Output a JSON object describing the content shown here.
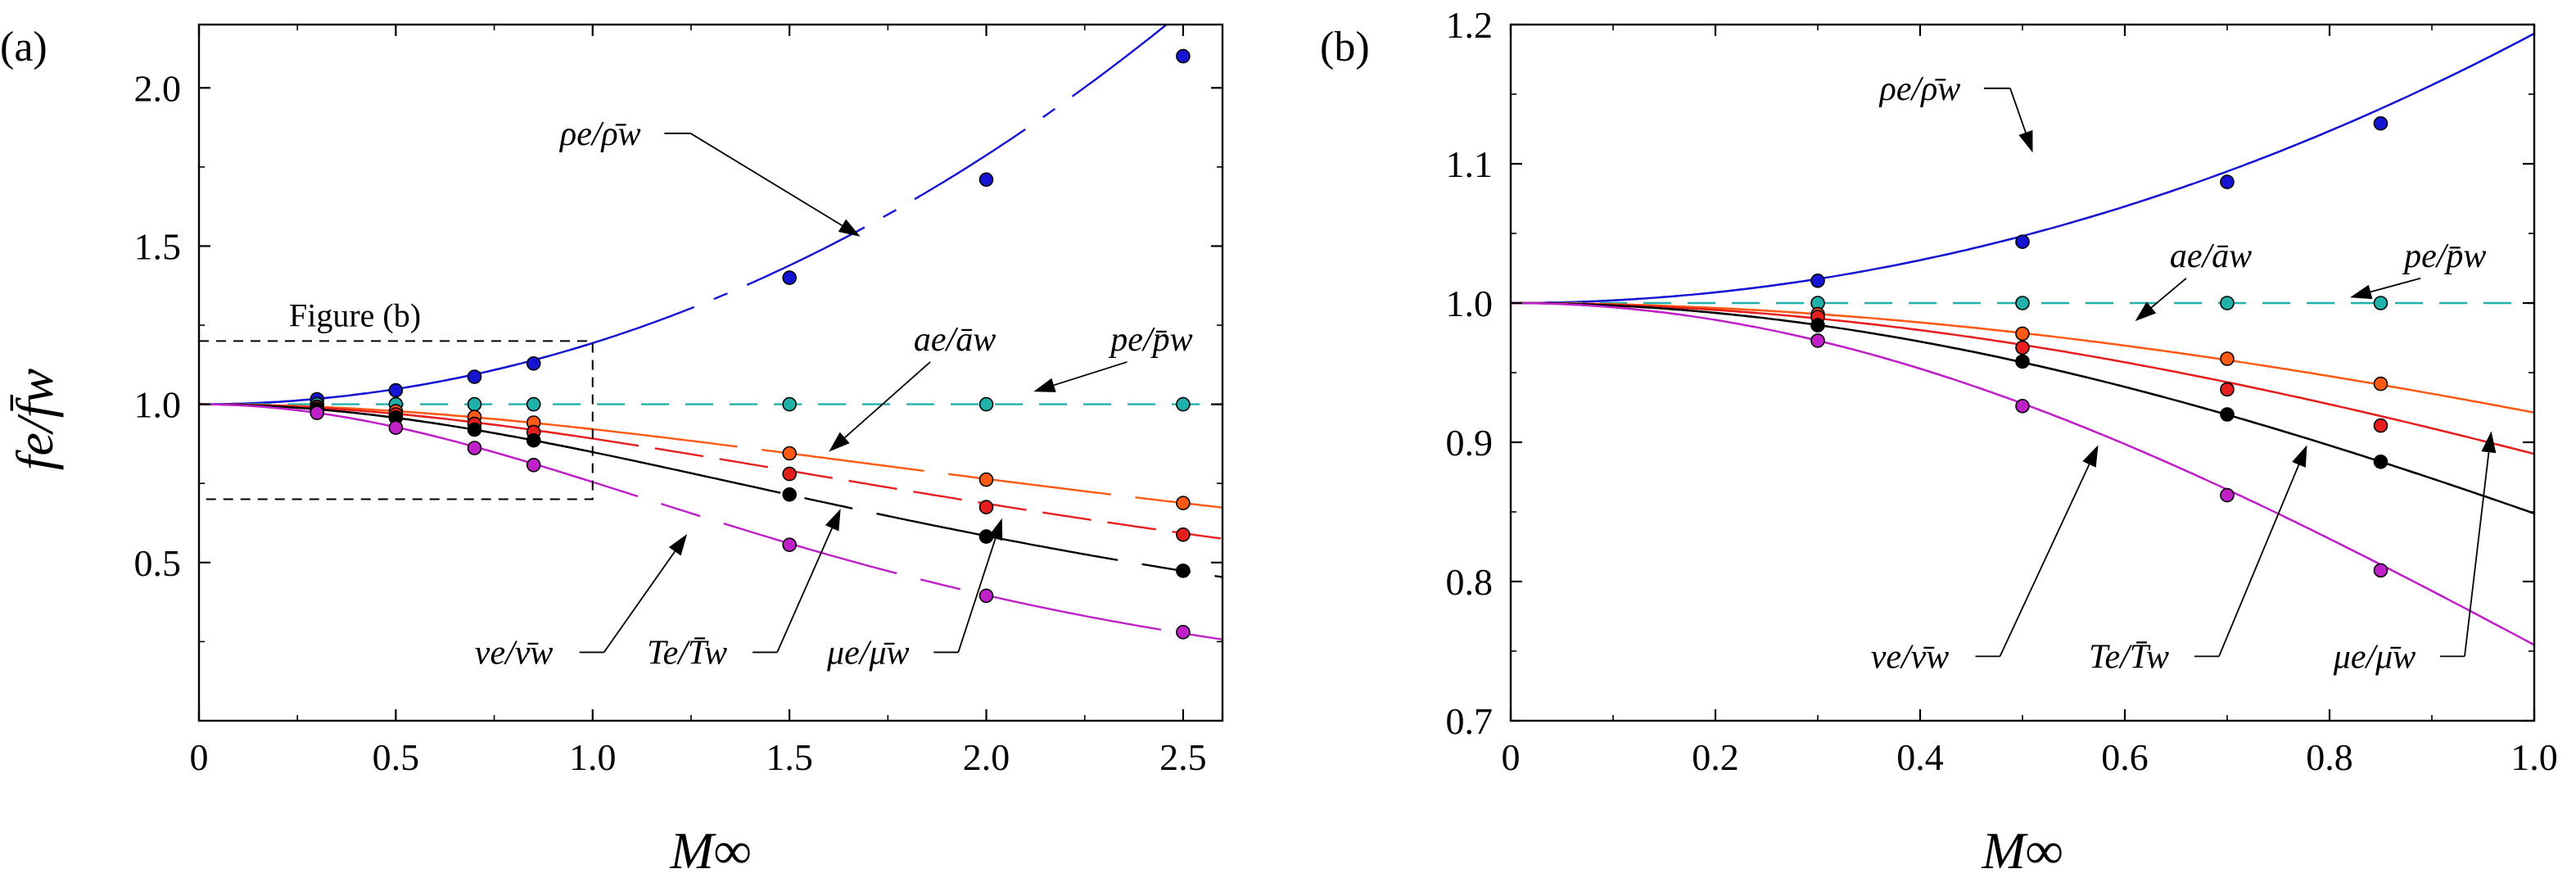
{
  "colors": {
    "rho": "#1414d2",
    "p": "#20b2aa",
    "a": "#ff5a14",
    "mu": "#e61e1e",
    "T": "#000000",
    "nu": "#c020c8"
  },
  "chart_data": [
    {
      "type": "line",
      "panel": "(a)",
      "title": "",
      "xlabel": "M∞",
      "ylabel": "fe/f̄w",
      "xlim": [
        0,
        2.6
      ],
      "ylim": [
        0.0,
        2.2
      ],
      "xticks": [
        0,
        0.5,
        1.0,
        1.5,
        2.0,
        2.5
      ],
      "xtick_labels": [
        "0",
        "0.5",
        "1.0",
        "1.5",
        "2.0",
        "2.5"
      ],
      "yticks": [
        0.5,
        1.0,
        1.5,
        2.0
      ],
      "ytick_labels": [
        "0.5",
        "1.0",
        "1.5",
        "2.0"
      ],
      "inset_box": {
        "label": "Figure (b)",
        "x_range": [
          0,
          1.0
        ],
        "y_range": [
          0.7,
          1.2
        ]
      },
      "series": [
        {
          "name": "ρe/ρ̄w",
          "key": "rho",
          "points_x": [
            0.3,
            0.5,
            0.7,
            0.85,
            1.5,
            2.0,
            2.5
          ],
          "points_y": [
            1.016,
            1.044,
            1.087,
            1.129,
            1.4,
            1.71,
            2.1
          ]
        },
        {
          "name": "pe/p̄w",
          "key": "p",
          "points_x": [
            0.3,
            0.5,
            0.7,
            0.85,
            1.5,
            2.0,
            2.5
          ],
          "points_y": [
            1.0,
            1.0,
            1.0,
            1.0,
            1.0,
            1.0,
            1.0
          ]
        },
        {
          "name": "ae/āw",
          "key": "a",
          "points_x": [
            0.3,
            0.5,
            0.7,
            0.85,
            1.5,
            2.0,
            2.5
          ],
          "points_y": [
            0.992,
            0.978,
            0.96,
            0.942,
            0.845,
            0.762,
            0.688
          ]
        },
        {
          "name": "μe/μ̄w",
          "key": "mu",
          "points_x": [
            0.3,
            0.5,
            0.7,
            0.85,
            1.5,
            2.0,
            2.5
          ],
          "points_y": [
            0.99,
            0.968,
            0.938,
            0.912,
            0.78,
            0.675,
            0.588
          ]
        },
        {
          "name": "Te/T̄w",
          "key": "T",
          "points_x": [
            0.3,
            0.5,
            0.7,
            0.85,
            1.5,
            2.0,
            2.5
          ],
          "points_y": [
            0.984,
            0.958,
            0.92,
            0.886,
            0.715,
            0.582,
            0.474
          ]
        },
        {
          "name": "νe/ν̄w",
          "key": "nu",
          "points_x": [
            0.3,
            0.5,
            0.7,
            0.85,
            1.5,
            2.0,
            2.5
          ],
          "points_y": [
            0.973,
            0.926,
            0.862,
            0.808,
            0.556,
            0.395,
            0.28
          ]
        }
      ],
      "annotations": [
        {
          "text": "ρe/ρ̄w",
          "target": "rho"
        },
        {
          "text": "ae/āw",
          "target": "a"
        },
        {
          "text": "pe/p̄w",
          "target": "p"
        },
        {
          "text": "νe/ν̄w",
          "target": "nu"
        },
        {
          "text": "Te/T̄w",
          "target": "T"
        },
        {
          "text": "μe/μ̄w",
          "target": "mu"
        }
      ]
    },
    {
      "type": "line",
      "panel": "(b)",
      "title": "",
      "xlabel": "M∞",
      "ylabel": "",
      "xlim": [
        0,
        1.0
      ],
      "ylim": [
        0.7,
        1.2
      ],
      "xticks": [
        0,
        0.2,
        0.4,
        0.6,
        0.8,
        1.0
      ],
      "xtick_labels": [
        "0",
        "0.2",
        "0.4",
        "0.6",
        "0.8",
        "1.0"
      ],
      "yticks": [
        0.7,
        0.8,
        0.9,
        1.0,
        1.1,
        1.2
      ],
      "ytick_labels": [
        "0.7",
        "0.8",
        "0.9",
        "1.0",
        "1.1",
        "1.2"
      ],
      "series": [
        {
          "name": "ρe/ρ̄w",
          "key": "rho",
          "points_x": [
            0.3,
            0.5,
            0.7,
            0.85
          ],
          "points_y": [
            1.016,
            1.044,
            1.087,
            1.129
          ]
        },
        {
          "name": "pe/p̄w",
          "key": "p",
          "points_x": [
            0.3,
            0.5,
            0.7,
            0.85
          ],
          "points_y": [
            1.0,
            1.0,
            1.0,
            1.0
          ]
        },
        {
          "name": "ae/āw",
          "key": "a",
          "points_x": [
            0.3,
            0.5,
            0.7,
            0.85
          ],
          "points_y": [
            0.992,
            0.978,
            0.96,
            0.942
          ]
        },
        {
          "name": "μe/μ̄w",
          "key": "mu",
          "points_x": [
            0.3,
            0.5,
            0.7,
            0.85
          ],
          "points_y": [
            0.99,
            0.968,
            0.938,
            0.912
          ]
        },
        {
          "name": "Te/T̄w",
          "key": "T",
          "points_x": [
            0.3,
            0.5,
            0.7,
            0.85
          ],
          "points_y": [
            0.984,
            0.958,
            0.92,
            0.886
          ]
        },
        {
          "name": "νe/ν̄w",
          "key": "nu",
          "points_x": [
            0.3,
            0.5,
            0.7,
            0.85
          ],
          "points_y": [
            0.973,
            0.926,
            0.862,
            0.808
          ]
        }
      ],
      "annotations": [
        {
          "text": "ρe/ρ̄w",
          "target": "rho"
        },
        {
          "text": "ae/āw",
          "target": "a"
        },
        {
          "text": "pe/p̄w",
          "target": "p"
        },
        {
          "text": "νe/ν̄w",
          "target": "nu"
        },
        {
          "text": "Te/T̄w",
          "target": "T"
        },
        {
          "text": "μe/μ̄w",
          "target": "mu"
        }
      ]
    }
  ]
}
